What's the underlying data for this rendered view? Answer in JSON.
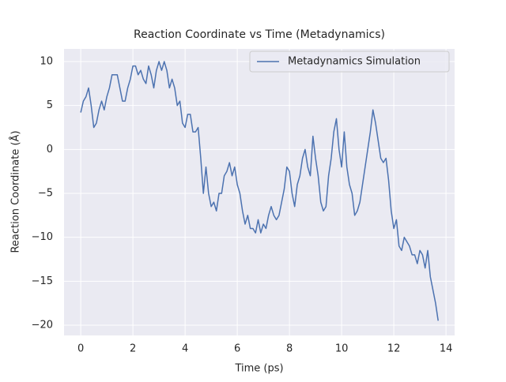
{
  "chart_data": {
    "type": "line",
    "title": "Reaction Coordinate vs Time (Metadynamics)",
    "x_label": "Time (ps)",
    "y_label": "Reaction Coordinate (Å)",
    "x": [
      0.0,
      0.1,
      0.2,
      0.3,
      0.4,
      0.5,
      0.6,
      0.7,
      0.8,
      0.9,
      1.0,
      1.1,
      1.2,
      1.3,
      1.4,
      1.5,
      1.6,
      1.7,
      1.8,
      1.9,
      2.0,
      2.1,
      2.2,
      2.3,
      2.4,
      2.5,
      2.6,
      2.7,
      2.8,
      2.9,
      3.0,
      3.1,
      3.2,
      3.3,
      3.4,
      3.5,
      3.6,
      3.7,
      3.8,
      3.9,
      4.0,
      4.1,
      4.2,
      4.3,
      4.4,
      4.5,
      4.6,
      4.7,
      4.8,
      4.9,
      5.0,
      5.1,
      5.2,
      5.3,
      5.4,
      5.5,
      5.6,
      5.7,
      5.8,
      5.9,
      6.0,
      6.1,
      6.2,
      6.3,
      6.4,
      6.5,
      6.6,
      6.7,
      6.8,
      6.9,
      7.0,
      7.1,
      7.2,
      7.3,
      7.4,
      7.5,
      7.6,
      7.7,
      7.8,
      7.9,
      8.0,
      8.1,
      8.2,
      8.3,
      8.4,
      8.5,
      8.6,
      8.7,
      8.8,
      8.9,
      9.0,
      9.1,
      9.2,
      9.3,
      9.4,
      9.5,
      9.6,
      9.7,
      9.8,
      9.9,
      10.0,
      10.1,
      10.2,
      10.3,
      10.4,
      10.5,
      10.6,
      10.7,
      10.8,
      10.9,
      11.0,
      11.1,
      11.2,
      11.3,
      11.4,
      11.5,
      11.6,
      11.7,
      11.8,
      11.9,
      12.0,
      12.1,
      12.2,
      12.3,
      12.4,
      12.5,
      12.6,
      12.7,
      12.8,
      12.9,
      13.0,
      13.1,
      13.2,
      13.3,
      13.4,
      13.5,
      13.6,
      13.7
    ],
    "series": [
      {
        "name": "Metadynamics Simulation",
        "color": "#4c72b0",
        "values": [
          4.2,
          5.5,
          6,
          7,
          5,
          2.5,
          3,
          4.5,
          5.5,
          4.5,
          6,
          7,
          8.5,
          8.5,
          8.5,
          7,
          5.5,
          5.5,
          7,
          8,
          9.5,
          9.5,
          8.5,
          9,
          8,
          7.5,
          9.5,
          8.5,
          7,
          9,
          10,
          9,
          10,
          9,
          7,
          8,
          7,
          5,
          5.5,
          3,
          2.5,
          4,
          4,
          2,
          2,
          2.5,
          -1,
          -5,
          -2,
          -5,
          -6.5,
          -6,
          -7,
          -5,
          -5,
          -3,
          -2.5,
          -1.5,
          -3,
          -2,
          -4,
          -5,
          -7,
          -8.5,
          -7.5,
          -9,
          -9,
          -9.5,
          -8,
          -9.5,
          -8.5,
          -9,
          -7.5,
          -6.5,
          -7.5,
          -8,
          -7.5,
          -6,
          -4.5,
          -2,
          -2.5,
          -5,
          -6.5,
          -4,
          -3,
          -1,
          0,
          -2,
          -3,
          1.5,
          -1,
          -3,
          -6,
          -7,
          -6.5,
          -3,
          -1,
          2,
          3.5,
          0,
          -2,
          2,
          -2,
          -4,
          -5,
          -7.5,
          -7,
          -6,
          -4,
          -2,
          0,
          2,
          4.5,
          3,
          1,
          -1,
          -1.5,
          -1,
          -3.5,
          -7,
          -9,
          -8,
          -11,
          -11.5,
          -10,
          -10.5,
          -11,
          -12,
          -12,
          -13,
          -11.5,
          -12,
          -13.5,
          -11.5,
          -14.5,
          -16,
          -17.5,
          -19.5
        ]
      }
    ],
    "xlim": [
      -0.64,
      14.33
    ],
    "ylim": [
      -21.17,
      11.44
    ],
    "xticks": [
      0,
      2,
      4,
      6,
      8,
      10,
      12,
      14
    ],
    "yticks": [
      {
        "value": -20,
        "label": "−20"
      },
      {
        "value": -15,
        "label": "−15"
      },
      {
        "value": -10,
        "label": "−10"
      },
      {
        "value": -5,
        "label": "−5"
      },
      0,
      5,
      10
    ],
    "grid": true,
    "legend": "upper right"
  }
}
